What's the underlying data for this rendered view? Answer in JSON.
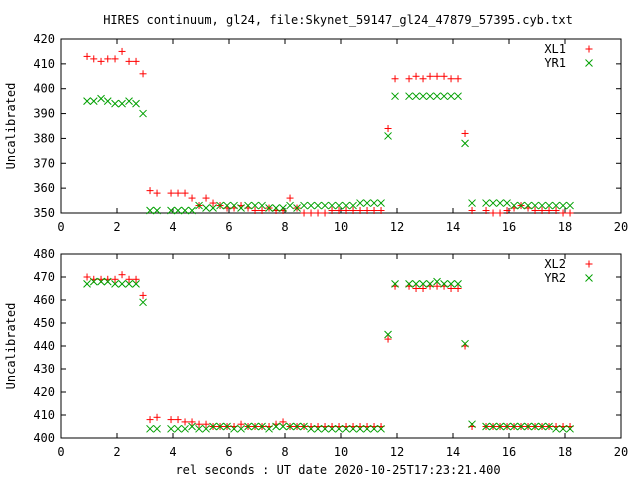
{
  "title": "HIRES continuum, gl24, file:Skynet_59147_gl24_47879_57395.cyb.txt",
  "xlabel": "rel seconds : UT date 2020-10-25T17:23:21.400",
  "colors": {
    "series1": "#ff0000",
    "series2": "#00a000"
  },
  "chart_data": [
    {
      "type": "scatter",
      "ylabel": "Uncalibrated",
      "xlim": [
        0,
        20
      ],
      "ylim": [
        350,
        420
      ],
      "xticks": [
        0,
        2,
        4,
        6,
        8,
        10,
        12,
        14,
        16,
        18,
        20
      ],
      "yticks": [
        350,
        360,
        370,
        380,
        390,
        400,
        410,
        420
      ],
      "legend": "top-right",
      "series": [
        {
          "name": "XL1",
          "marker": "plus",
          "x": [
            0.93,
            1.17,
            1.43,
            1.67,
            1.93,
            2.18,
            2.43,
            2.68,
            2.93,
            3.18,
            3.43,
            3.93,
            4.18,
            4.43,
            4.68,
            4.93,
            5.18,
            5.43,
            5.68,
            5.93,
            6.18,
            6.43,
            6.68,
            6.93,
            7.18,
            7.43,
            7.68,
            7.93,
            8.18,
            8.43,
            8.68,
            8.93,
            9.18,
            9.43,
            9.68,
            9.93,
            10.18,
            10.43,
            10.68,
            10.93,
            11.18,
            11.43,
            11.68,
            11.93,
            12.43,
            12.68,
            12.93,
            13.18,
            13.43,
            13.68,
            13.93,
            14.18,
            14.43,
            14.68,
            15.18,
            15.43,
            15.68,
            15.93,
            16.18,
            16.43,
            16.68,
            16.93,
            17.18,
            17.43,
            17.68,
            17.93,
            18.18
          ],
          "y": [
            413,
            412,
            411,
            412,
            412,
            415,
            411,
            411,
            406,
            359,
            358,
            358,
            358,
            358,
            356,
            353,
            356,
            354,
            353,
            352,
            352,
            353,
            352,
            351,
            351,
            352,
            351,
            351,
            356,
            352,
            350,
            350,
            350,
            350,
            351,
            351,
            351,
            351,
            351,
            351,
            351,
            351,
            384,
            404,
            404,
            405,
            404,
            405,
            405,
            405,
            404,
            404,
            382,
            351,
            351,
            350,
            350,
            351,
            352,
            353,
            352,
            351,
            351,
            351,
            351,
            350,
            350
          ]
        },
        {
          "name": "YR1",
          "marker": "cross",
          "x": [
            0.93,
            1.17,
            1.43,
            1.67,
            1.93,
            2.18,
            2.43,
            2.68,
            2.93,
            3.18,
            3.43,
            3.93,
            4.18,
            4.43,
            4.68,
            4.93,
            5.18,
            5.43,
            5.68,
            5.93,
            6.18,
            6.43,
            6.68,
            6.93,
            7.18,
            7.43,
            7.68,
            7.93,
            8.18,
            8.43,
            8.68,
            8.93,
            9.18,
            9.43,
            9.68,
            9.93,
            10.18,
            10.43,
            10.68,
            10.93,
            11.18,
            11.43,
            11.68,
            11.93,
            12.43,
            12.68,
            12.93,
            13.18,
            13.43,
            13.68,
            13.93,
            14.18,
            14.43,
            14.68,
            15.18,
            15.43,
            15.68,
            15.93,
            16.18,
            16.43,
            16.68,
            16.93,
            17.18,
            17.43,
            17.68,
            17.93,
            18.18
          ],
          "y": [
            395,
            395,
            396,
            395,
            394,
            394,
            395,
            394,
            390,
            351,
            351,
            351,
            351,
            351,
            351,
            353,
            352,
            352,
            353,
            353,
            353,
            352,
            353,
            353,
            353,
            352,
            352,
            352,
            353,
            352,
            353,
            353,
            353,
            353,
            353,
            353,
            353,
            353,
            354,
            354,
            354,
            354,
            381,
            397,
            397,
            397,
            397,
            397,
            397,
            397,
            397,
            397,
            378,
            354,
            354,
            354,
            354,
            354,
            353,
            353,
            353,
            353,
            353,
            353,
            353,
            353,
            353
          ]
        }
      ]
    },
    {
      "type": "scatter",
      "ylabel": "Uncalibrated",
      "xlim": [
        0,
        20
      ],
      "ylim": [
        400,
        480
      ],
      "xticks": [
        0,
        2,
        4,
        6,
        8,
        10,
        12,
        14,
        16,
        18,
        20
      ],
      "yticks": [
        400,
        410,
        420,
        430,
        440,
        450,
        460,
        470,
        480
      ],
      "legend": "top-right",
      "series": [
        {
          "name": "XL2",
          "marker": "plus",
          "x": [
            0.93,
            1.17,
            1.43,
            1.67,
            1.93,
            2.18,
            2.43,
            2.68,
            2.93,
            3.18,
            3.43,
            3.93,
            4.18,
            4.43,
            4.68,
            4.93,
            5.18,
            5.43,
            5.68,
            5.93,
            6.18,
            6.43,
            6.68,
            6.93,
            7.18,
            7.43,
            7.68,
            7.93,
            8.18,
            8.43,
            8.68,
            8.93,
            9.18,
            9.43,
            9.68,
            9.93,
            10.18,
            10.43,
            10.68,
            10.93,
            11.18,
            11.43,
            11.68,
            11.93,
            12.43,
            12.68,
            12.93,
            13.18,
            13.43,
            13.68,
            13.93,
            14.18,
            14.43,
            14.68,
            15.18,
            15.43,
            15.68,
            15.93,
            16.18,
            16.43,
            16.68,
            16.93,
            17.18,
            17.43,
            17.68,
            17.93,
            18.18
          ],
          "y": [
            470,
            469,
            469,
            469,
            469,
            471,
            469,
            469,
            462,
            408,
            409,
            408,
            408,
            407,
            407,
            406,
            406,
            405,
            405,
            405,
            405,
            406,
            405,
            405,
            405,
            405,
            406,
            407,
            405,
            405,
            405,
            405,
            405,
            405,
            405,
            405,
            405,
            405,
            405,
            405,
            405,
            405,
            443,
            466,
            466,
            465,
            465,
            466,
            466,
            466,
            465,
            465,
            440,
            405,
            405,
            405,
            405,
            405,
            405,
            405,
            405,
            405,
            405,
            405,
            405,
            405,
            405
          ]
        },
        {
          "name": "YR2",
          "marker": "cross",
          "x": [
            0.93,
            1.17,
            1.43,
            1.67,
            1.93,
            2.18,
            2.43,
            2.68,
            2.93,
            3.18,
            3.43,
            3.93,
            4.18,
            4.43,
            4.68,
            4.93,
            5.18,
            5.43,
            5.68,
            5.93,
            6.18,
            6.43,
            6.68,
            6.93,
            7.18,
            7.43,
            7.68,
            7.93,
            8.18,
            8.43,
            8.68,
            8.93,
            9.18,
            9.43,
            9.68,
            9.93,
            10.18,
            10.43,
            10.68,
            10.93,
            11.18,
            11.43,
            11.68,
            11.93,
            12.43,
            12.68,
            12.93,
            13.18,
            13.43,
            13.68,
            13.93,
            14.18,
            14.43,
            14.68,
            15.18,
            15.43,
            15.68,
            15.93,
            16.18,
            16.43,
            16.68,
            16.93,
            17.18,
            17.43,
            17.68,
            17.93,
            18.18
          ],
          "y": [
            467,
            468,
            468,
            468,
            467,
            467,
            467,
            467,
            459,
            404,
            404,
            404,
            404,
            404,
            405,
            404,
            404,
            405,
            405,
            405,
            404,
            404,
            405,
            405,
            405,
            404,
            405,
            405,
            405,
            405,
            405,
            404,
            404,
            404,
            404,
            404,
            404,
            404,
            404,
            404,
            404,
            404,
            445,
            467,
            467,
            467,
            467,
            467,
            468,
            467,
            467,
            467,
            441,
            406,
            405,
            405,
            405,
            405,
            405,
            405,
            405,
            405,
            405,
            405,
            404,
            404,
            404
          ]
        }
      ]
    }
  ]
}
